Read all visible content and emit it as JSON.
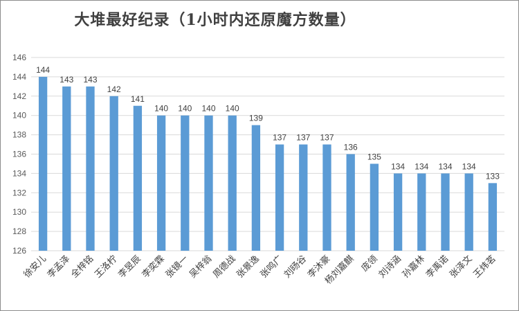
{
  "chart_data": {
    "type": "bar",
    "title": "大堆最好纪录（1小时内还原魔方数量）",
    "categories": [
      "徐安儿",
      "李孟泽",
      "全梓铭",
      "王洛柠",
      "李昱辰",
      "李奕霖",
      "张镜一",
      "吴梓翁",
      "周德战",
      "张景逸",
      "张鸣广",
      "刘旸谷",
      "李沐豪",
      "杨刘嘉麒",
      "庞领",
      "刘诗涵",
      "孙嘉林",
      "李禹诺",
      "张泽文",
      "王炜茗"
    ],
    "values": [
      144,
      143,
      143,
      142,
      141,
      140,
      140,
      140,
      140,
      139,
      137,
      137,
      137,
      136,
      135,
      134,
      134,
      134,
      134,
      133
    ],
    "ylim": [
      126,
      146
    ],
    "yticks": [
      126,
      128,
      130,
      132,
      134,
      136,
      138,
      140,
      142,
      144,
      146
    ],
    "grid": true,
    "bar_color": "#5b9bd5"
  }
}
